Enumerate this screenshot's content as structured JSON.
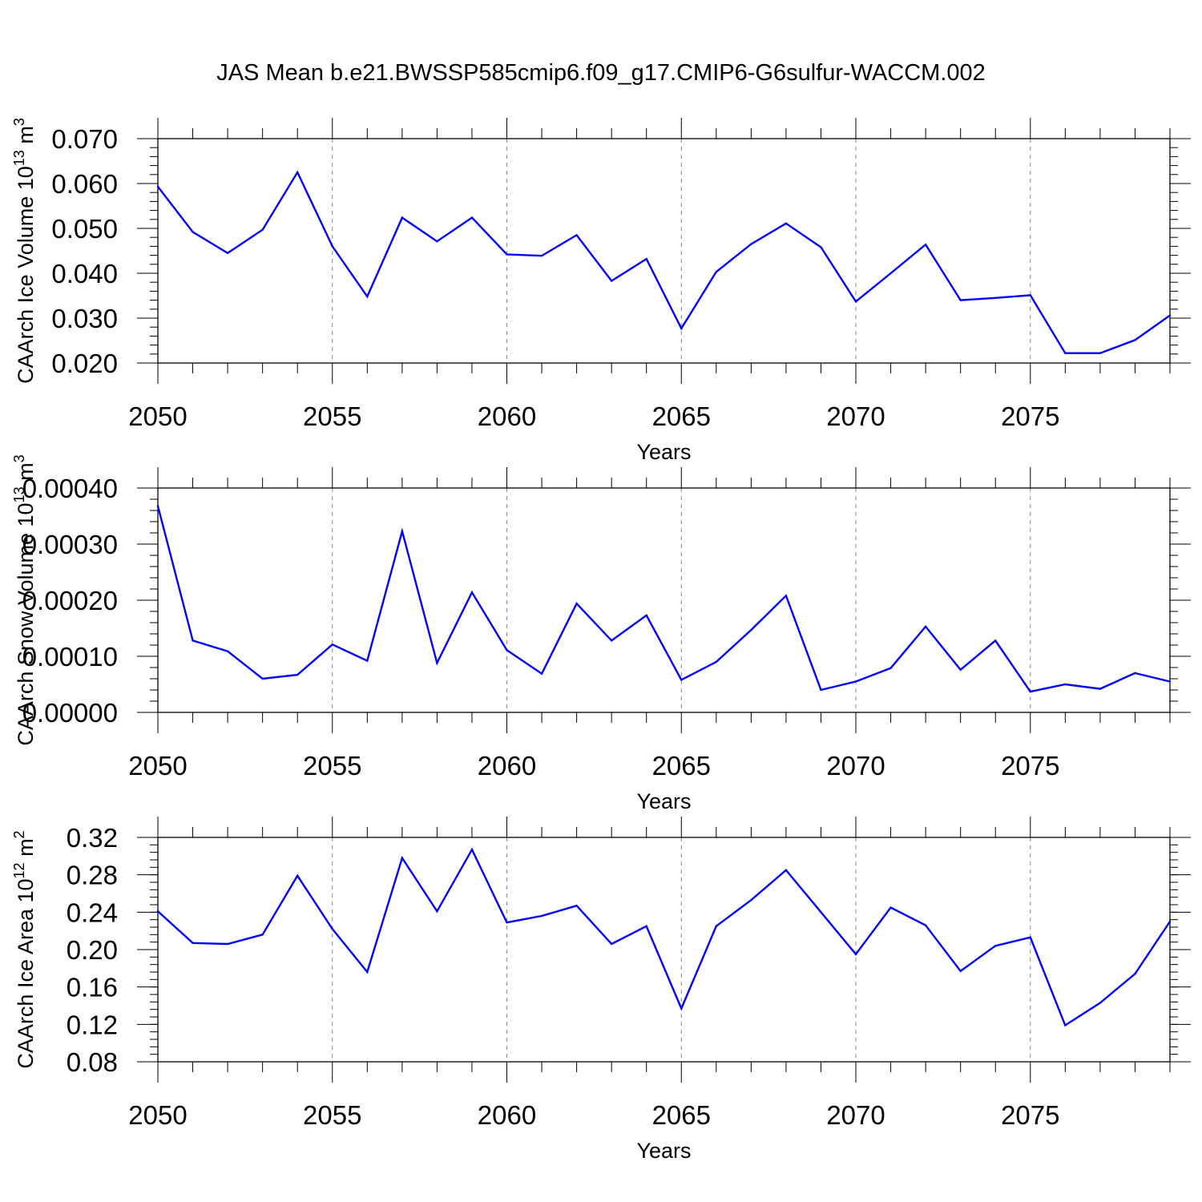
{
  "figure": {
    "title": "JAS Mean b.e21.BWSSP585cmip6.f09_g17.CMIP6-G6sulfur-WACCM.002",
    "line_color": "#0000ff",
    "grid_color": "#888888"
  },
  "chart_data": [
    {
      "type": "line",
      "title": "JAS Mean b.e21.BWSSP585cmip6.f09_g17.CMIP6-G6sulfur-WACCM.002",
      "xlabel": "Years",
      "ylabel": {
        "base": "CAArch Ice Volume 10",
        "exp": "13",
        "unit": " m",
        "unit_exp": "3"
      },
      "xlim": [
        2050,
        2079
      ],
      "ylim": [
        0.02,
        0.07
      ],
      "yticks": [
        "0.020",
        "0.030",
        "0.040",
        "0.050",
        "0.060",
        "0.070"
      ],
      "yminor_step": 0.002,
      "xticks": [
        "2050",
        "2055",
        "2060",
        "2065",
        "2070",
        "2075"
      ],
      "x": [
        2050,
        2051,
        2052,
        2053,
        2054,
        2055,
        2056,
        2057,
        2058,
        2059,
        2060,
        2061,
        2062,
        2063,
        2064,
        2065,
        2066,
        2067,
        2068,
        2069,
        2070,
        2071,
        2072,
        2073,
        2074,
        2075,
        2076,
        2077,
        2078,
        2079
      ],
      "values": [
        0.0593,
        0.0492,
        0.0445,
        0.0497,
        0.0625,
        0.046,
        0.0348,
        0.0524,
        0.0471,
        0.0524,
        0.0442,
        0.0439,
        0.0485,
        0.0383,
        0.0432,
        0.0277,
        0.0403,
        0.0465,
        0.0511,
        0.0458,
        0.0337,
        0.04,
        0.0464,
        0.034,
        0.0345,
        0.0351,
        0.0222,
        0.0222,
        0.0251,
        0.0306
      ]
    },
    {
      "type": "line",
      "xlabel": "Years",
      "ylabel": {
        "base": "CAArch Snow Volume 10",
        "exp": "13",
        "unit": " m",
        "unit_exp": "3"
      },
      "xlim": [
        2050,
        2079
      ],
      "ylim": [
        0,
        0.0004
      ],
      "yticks": [
        "0.00000",
        "0.00010",
        "0.00020",
        "0.00030",
        "0.00040"
      ],
      "yminor_step": 2e-05,
      "xticks": [
        "2050",
        "2055",
        "2060",
        "2065",
        "2070",
        "2075"
      ],
      "x": [
        2050,
        2051,
        2052,
        2053,
        2054,
        2055,
        2056,
        2057,
        2058,
        2059,
        2060,
        2061,
        2062,
        2063,
        2064,
        2065,
        2066,
        2067,
        2068,
        2069,
        2070,
        2071,
        2072,
        2073,
        2074,
        2075,
        2076,
        2077,
        2078,
        2079
      ],
      "values": [
        0.000368,
        0.000128,
        0.000109,
        6e-05,
        6.7e-05,
        0.000121,
        9.2e-05,
        0.000323,
        8.8e-05,
        0.000214,
        0.000111,
        6.9e-05,
        0.000194,
        0.000128,
        0.000173,
        5.8e-05,
        9e-05,
        0.000147,
        0.000208,
        4e-05,
        5.5e-05,
        7.9e-05,
        0.000153,
        7.6e-05,
        0.000128,
        3.7e-05,
        5e-05,
        4.2e-05,
        7e-05,
        5.5e-05
      ]
    },
    {
      "type": "line",
      "xlabel": "Years",
      "ylabel": {
        "base": "CAArch Ice Area 10",
        "exp": "12",
        "unit": " m",
        "unit_exp": "2"
      },
      "xlim": [
        2050,
        2079
      ],
      "ylim": [
        0.08,
        0.32
      ],
      "yticks": [
        "0.08",
        "0.12",
        "0.16",
        "0.20",
        "0.24",
        "0.28",
        "0.32"
      ],
      "yminor_step": 0.008,
      "xticks": [
        "2050",
        "2055",
        "2060",
        "2065",
        "2070",
        "2075"
      ],
      "x": [
        2050,
        2051,
        2052,
        2053,
        2054,
        2055,
        2056,
        2057,
        2058,
        2059,
        2060,
        2061,
        2062,
        2063,
        2064,
        2065,
        2066,
        2067,
        2068,
        2069,
        2070,
        2071,
        2072,
        2073,
        2074,
        2075,
        2076,
        2077,
        2078,
        2079
      ],
      "values": [
        0.241,
        0.207,
        0.206,
        0.216,
        0.279,
        0.222,
        0.176,
        0.298,
        0.241,
        0.307,
        0.229,
        0.236,
        0.247,
        0.206,
        0.225,
        0.137,
        0.225,
        0.253,
        0.285,
        0.24,
        0.195,
        0.245,
        0.226,
        0.177,
        0.204,
        0.213,
        0.119,
        0.143,
        0.174,
        0.23
      ]
    }
  ]
}
